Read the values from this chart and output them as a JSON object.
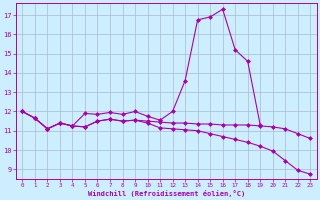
{
  "xlabel": "Windchill (Refroidissement éolien,°C)",
  "bg_color": "#cceeff",
  "line_color": "#aa00aa",
  "grid_color": "#aabbcc",
  "x_ticks": [
    0,
    1,
    2,
    3,
    4,
    5,
    6,
    7,
    8,
    9,
    10,
    11,
    12,
    13,
    14,
    15,
    16,
    17,
    18,
    19,
    20,
    21,
    22,
    23
  ],
  "y_ticks": [
    9,
    10,
    11,
    12,
    13,
    14,
    15,
    16,
    17
  ],
  "xlim": [
    -0.5,
    23.5
  ],
  "ylim": [
    8.5,
    17.6
  ],
  "curve1_x": [
    0,
    1,
    2,
    3,
    4,
    5,
    6,
    7,
    8,
    9,
    10,
    11,
    12,
    13,
    14,
    15,
    16,
    17,
    18,
    19,
    20,
    21,
    22,
    23
  ],
  "curve1_y": [
    12.0,
    11.65,
    11.1,
    11.4,
    11.25,
    11.9,
    11.85,
    11.95,
    11.85,
    12.0,
    11.75,
    11.55,
    12.0,
    13.6,
    16.75,
    16.9,
    17.3,
    15.2,
    14.6,
    11.3,
    null,
    null,
    null,
    null
  ],
  "curve2_x": [
    0,
    1,
    2,
    3,
    4,
    5,
    6,
    7,
    8,
    9,
    10,
    11,
    12,
    13,
    14,
    15,
    16,
    17,
    18,
    19,
    20,
    21,
    22,
    23
  ],
  "curve2_y": [
    12.0,
    11.65,
    11.1,
    11.4,
    11.25,
    11.2,
    11.5,
    11.6,
    11.5,
    11.55,
    11.5,
    11.45,
    11.4,
    11.4,
    11.35,
    11.35,
    11.3,
    11.3,
    11.3,
    11.25,
    11.2,
    11.1,
    10.85,
    10.6
  ],
  "curve3_x": [
    0,
    1,
    2,
    3,
    4,
    5,
    6,
    7,
    8,
    9,
    10,
    11,
    12,
    13,
    14,
    15,
    16,
    17,
    18,
    19,
    20,
    21,
    22,
    23
  ],
  "curve3_y": [
    12.0,
    11.65,
    11.1,
    11.4,
    11.25,
    11.2,
    11.5,
    11.6,
    11.5,
    11.55,
    11.4,
    11.15,
    11.1,
    11.05,
    11.0,
    10.85,
    10.7,
    10.55,
    10.4,
    10.2,
    9.95,
    9.45,
    8.95,
    8.75
  ]
}
